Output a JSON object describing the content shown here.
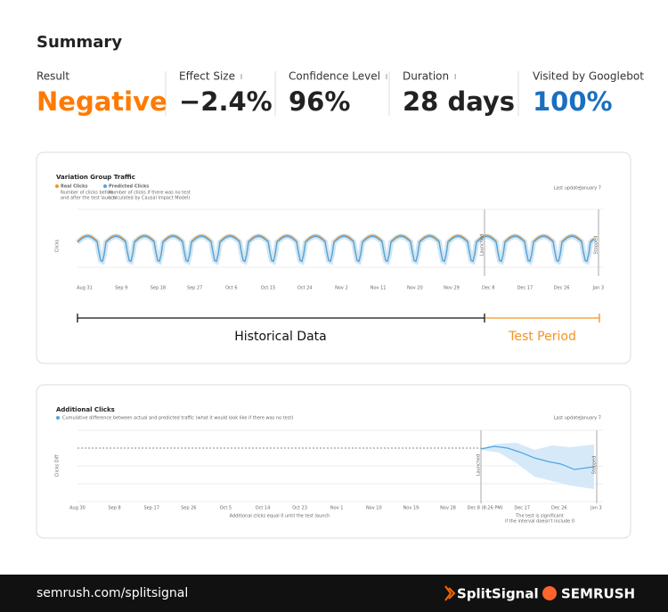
{
  "summary": {
    "title": "Summary",
    "metrics": [
      {
        "label": "Result",
        "value": "Negative"
      },
      {
        "label": "Effect Size",
        "value": "−2.4%"
      },
      {
        "label": "Confidence Level",
        "value": "96%"
      },
      {
        "label": "Duration",
        "value": "28 days"
      },
      {
        "label": "Visited by Googlebot",
        "value": "100%"
      }
    ]
  },
  "traffic_chart": {
    "title": "Variation Group Traffic",
    "legend": [
      {
        "name": "Real Clicks",
        "desc": [
          "Number of clicks before",
          "and after the test launch"
        ]
      },
      {
        "name": "Predicted Clicks",
        "desc": [
          "Number of clicks if there was no test",
          "(calculated by Causal Impact Model)"
        ]
      }
    ],
    "last_update_label": "Last update:",
    "last_update": "January 7",
    "y_label": "Clicks",
    "x_labels": [
      "Aug 31",
      "Sep 9",
      "Sep 18",
      "Sep 27",
      "Oct 6",
      "Oct 15",
      "Oct 24",
      "Nov 2",
      "Nov 11",
      "Nov 20",
      "Nov 29",
      "Dec 8",
      "Dec 17",
      "Dec 26",
      "Jan 3"
    ],
    "launched": "Launched",
    "stopped": "Stopped",
    "historical": "Historical Data",
    "test_period": "Test Period"
  },
  "clicks_chart": {
    "title": "Additional Clicks",
    "legend": "Cumulative difference between actual and predicted traffic (what it would look like if there was no test)",
    "last_update_label": "Last update:",
    "last_update": "January 7",
    "y_label": "Clicks Diff",
    "x_labels": [
      "Aug 30",
      "Sep 8",
      "Sep 17",
      "Sep 26",
      "Oct 5",
      "Oct 14",
      "Oct 23",
      "Nov 1",
      "Nov 10",
      "Nov 19",
      "Nov 28",
      "Dec 8 (8:26 PM)",
      "Dec 17",
      "Dec 26",
      "Jan 3"
    ],
    "launched": "Launched",
    "stopped": "Stopped",
    "note_before": "Additional clicks equal 0 until the test launch",
    "note_after": [
      "The test is significant",
      "if the interval doesn't include 0"
    ]
  },
  "footer": {
    "url": "semrush.com/splitsignal",
    "brand": "SplitSignal",
    "company": "SEMRUSH"
  }
}
